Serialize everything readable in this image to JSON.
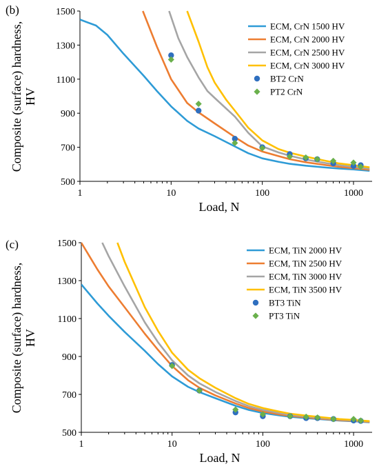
{
  "chart_data": [
    {
      "type": "line",
      "panel_label": "(b)",
      "xlabel": "Load, N",
      "ylabel_line1": "Composite (surface) hardness,",
      "ylabel_line2": "HV",
      "x_scale": "log",
      "xlim": [
        1,
        1600
      ],
      "ylim": [
        500,
        1500
      ],
      "x_ticks": [
        1,
        10,
        100,
        1000
      ],
      "y_ticks": [
        500,
        700,
        900,
        1100,
        1300,
        1500
      ],
      "grid": false,
      "legend_position": "top-right",
      "series": [
        {
          "name": "ECM, CrN 1500 HV",
          "kind": "line",
          "color": "#2e9bd6",
          "x": [
            1,
            1.5,
            2,
            3,
            5,
            7,
            10,
            15,
            20,
            30,
            50,
            70,
            100,
            150,
            200,
            300,
            500,
            700,
            1000,
            1500
          ],
          "y": [
            1450,
            1415,
            1360,
            1250,
            1120,
            1030,
            940,
            855,
            810,
            765,
            705,
            665,
            635,
            615,
            603,
            592,
            581,
            575,
            570,
            562
          ]
        },
        {
          "name": "ECM, CrN 2000 HV",
          "kind": "line",
          "color": "#ed7d31",
          "x": [
            4.9,
            7,
            10,
            15,
            20,
            30,
            50,
            70,
            100,
            150,
            200,
            300,
            500,
            700,
            1000,
            1500
          ],
          "y": [
            1500,
            1290,
            1100,
            960,
            905,
            840,
            760,
            710,
            675,
            648,
            630,
            612,
            595,
            585,
            577,
            568
          ]
        },
        {
          "name": "ECM, CrN 2500 HV",
          "kind": "line",
          "color": "#a5a5a5",
          "x": [
            9.5,
            12,
            15,
            20,
            25,
            30,
            50,
            70,
            100,
            150,
            200,
            300,
            500,
            700,
            1000,
            1500
          ],
          "y": [
            1500,
            1340,
            1230,
            1110,
            1030,
            990,
            880,
            785,
            705,
            670,
            650,
            628,
            607,
            595,
            585,
            574
          ]
        },
        {
          "name": "ECM, CrN 3000 HV",
          "kind": "line",
          "color": "#ffc000",
          "x": [
            15,
            20,
            25,
            30,
            40,
            50,
            70,
            100,
            150,
            200,
            300,
            500,
            700,
            1000,
            1500
          ],
          "y": [
            1500,
            1320,
            1170,
            1080,
            980,
            915,
            815,
            740,
            690,
            668,
            645,
            620,
            605,
            595,
            582
          ]
        },
        {
          "name": "BT2 CrN",
          "kind": "marker",
          "marker": "circle",
          "color": "#2f6fbf",
          "x": [
            10,
            20,
            50,
            100,
            200,
            300,
            400,
            600,
            1000,
            1200
          ],
          "y": [
            1240,
            915,
            750,
            700,
            660,
            635,
            630,
            605,
            590,
            595
          ]
        },
        {
          "name": "PT2 CrN",
          "kind": "marker",
          "marker": "diamond",
          "color": "#6ab04c",
          "x": [
            10,
            20,
            50,
            100,
            200,
            300,
            400,
            600,
            1000,
            1200
          ],
          "y": [
            1215,
            955,
            725,
            695,
            645,
            640,
            630,
            620,
            610,
            585
          ]
        }
      ]
    },
    {
      "type": "line",
      "panel_label": "(c)",
      "xlabel": "Load, N",
      "ylabel_line1": "Composite (surface) hardness,",
      "ylabel_line2": "HV",
      "x_scale": "log",
      "xlim": [
        1,
        1600
      ],
      "ylim": [
        500,
        1500
      ],
      "x_ticks": [
        1,
        10,
        100,
        1000
      ],
      "y_ticks": [
        500,
        700,
        900,
        1100,
        1300,
        1500
      ],
      "grid": false,
      "legend_position": "top-right",
      "series": [
        {
          "name": "ECM, TiN 2000 HV",
          "kind": "line",
          "color": "#2e9bd6",
          "x": [
            1,
            1.5,
            2,
            3,
            5,
            7,
            10,
            15,
            20,
            30,
            50,
            70,
            100,
            150,
            200,
            300,
            500,
            700,
            1000,
            1500
          ],
          "y": [
            1280,
            1180,
            1115,
            1030,
            930,
            860,
            795,
            740,
            712,
            680,
            640,
            618,
            602,
            590,
            582,
            575,
            567,
            562,
            558,
            553
          ]
        },
        {
          "name": "ECM, TiN 2500 HV",
          "kind": "line",
          "color": "#ed7d31",
          "x": [
            1,
            1.5,
            2,
            3,
            5,
            7,
            10,
            15,
            20,
            30,
            50,
            70,
            100,
            150,
            200,
            300,
            500,
            700,
            1000,
            1500
          ],
          "y": [
            1500,
            1360,
            1270,
            1160,
            1020,
            935,
            850,
            775,
            735,
            695,
            652,
            628,
            610,
            595,
            587,
            578,
            569,
            564,
            560,
            555
          ]
        },
        {
          "name": "ECM, TiN 3000 HV",
          "kind": "line",
          "color": "#a5a5a5",
          "x": [
            1.7,
            2,
            3,
            5,
            7,
            10,
            15,
            20,
            30,
            50,
            70,
            100,
            150,
            200,
            300,
            500,
            700,
            1000,
            1500
          ],
          "y": [
            1500,
            1430,
            1270,
            1080,
            975,
            880,
            800,
            758,
            713,
            665,
            638,
            618,
            602,
            592,
            583,
            573,
            567,
            562,
            557
          ]
        },
        {
          "name": "ECM, TiN 3500 HV",
          "kind": "line",
          "color": "#ffc000",
          "x": [
            2.5,
            3,
            5,
            7,
            10,
            15,
            20,
            30,
            50,
            70,
            100,
            150,
            200,
            300,
            500,
            700,
            1000,
            1500
          ],
          "y": [
            1500,
            1400,
            1160,
            1035,
            920,
            830,
            785,
            735,
            680,
            650,
            628,
            610,
            598,
            588,
            577,
            570,
            565,
            559
          ]
        },
        {
          "name": "BT3 TiN",
          "kind": "marker",
          "marker": "circle",
          "color": "#2f6fbf",
          "x": [
            10,
            20,
            50,
            100,
            200,
            300,
            400,
            600,
            1000,
            1200
          ],
          "y": [
            855,
            720,
            605,
            585,
            585,
            575,
            575,
            570,
            562,
            560
          ]
        },
        {
          "name": "PT3 TiN",
          "kind": "marker",
          "marker": "diamond",
          "color": "#6ab04c",
          "x": [
            10,
            20,
            50,
            100,
            200,
            300,
            400,
            600,
            1000,
            1200
          ],
          "y": [
            850,
            720,
            620,
            595,
            585,
            582,
            578,
            570,
            570,
            562
          ]
        }
      ]
    }
  ]
}
